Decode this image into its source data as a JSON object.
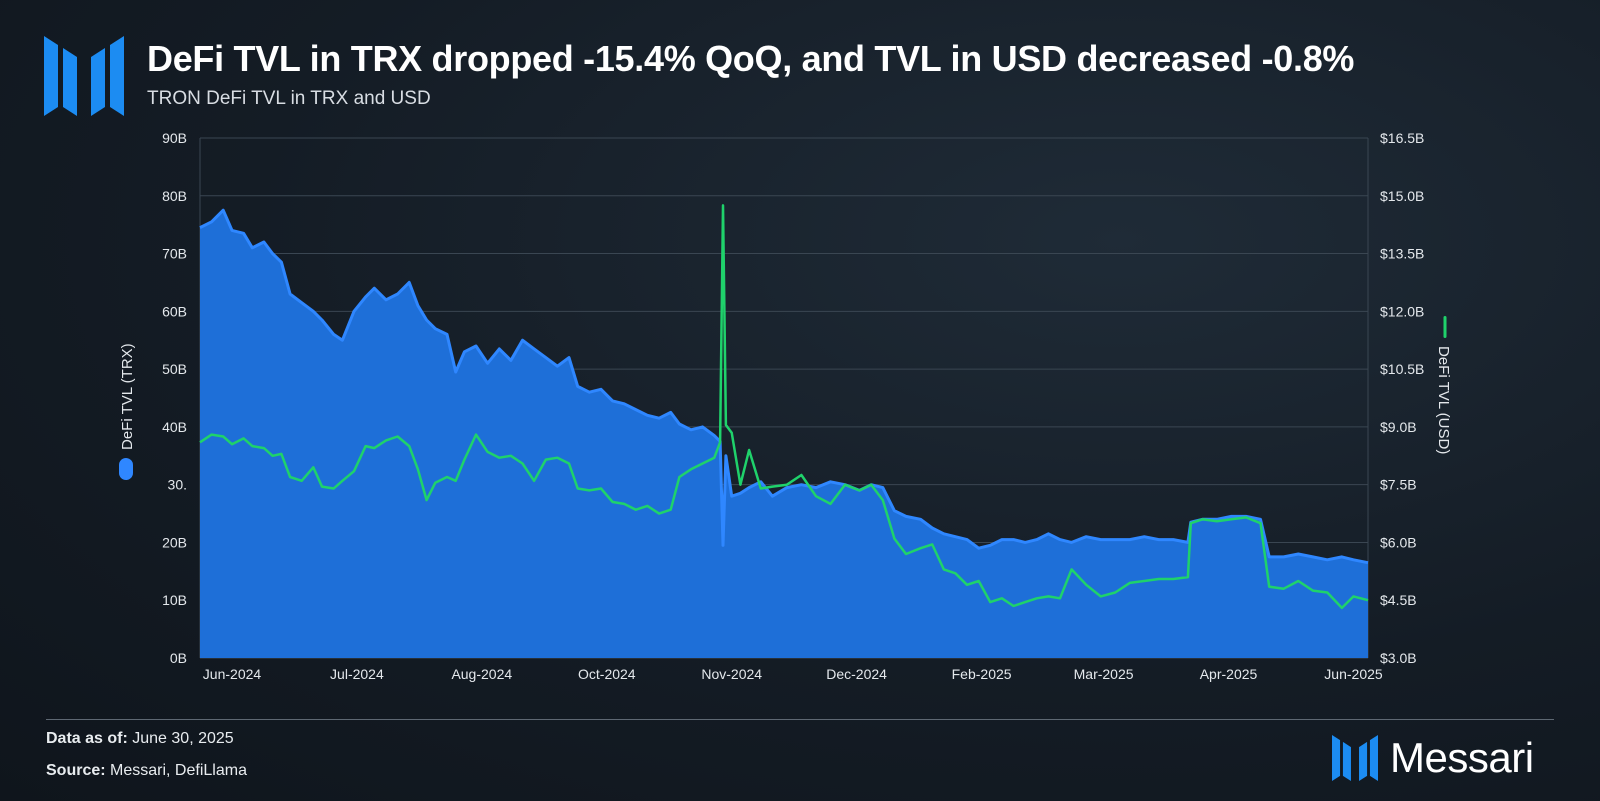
{
  "header": {
    "title": "DeFi TVL in TRX dropped -15.4% QoQ, and TVL in USD decreased -0.8%",
    "subtitle": "TRON DeFi TVL in TRX and USD"
  },
  "footer": {
    "date_label": "Data as of:",
    "date_value": "June 30, 2025",
    "source_label": "Source:",
    "source_value": "Messari, DefiLlama",
    "brand": "Messari"
  },
  "colors": {
    "trx_area": "#1e6fd8",
    "trx_line": "#2f87ff",
    "usd_line": "#1fd26b",
    "axis_text": "#e4e8ec",
    "grid": "#3a4652",
    "logo": "#1c8cf2"
  },
  "icons": {
    "logo": "messari-logo-icon"
  },
  "chart_data": {
    "type": "area",
    "ylabel_left": "DeFi TVL (TRX)",
    "ylabel_right": "DeFi TVL (USD)",
    "ylim_left": [
      0,
      90
    ],
    "ylim_right": [
      3.0,
      16.5
    ],
    "left_ticks": [
      "0B",
      "10B",
      "20B",
      "30.",
      "40B",
      "50B",
      "60B",
      "70B",
      "80B",
      "90B"
    ],
    "right_ticks": [
      "$3.0B",
      "$4.5B",
      "$6.0B",
      "$7.5B",
      "$9.0B",
      "$10.5B",
      "$12.0B",
      "$13.5B",
      "$15.0B",
      "$16.5B"
    ],
    "x_ticks": [
      "Jun-2024",
      "Jul-2024",
      "Aug-2024",
      "Oct-2024",
      "Nov-2024",
      "Dec-2024",
      "Feb-2025",
      "Mar-2025",
      "Apr-2025",
      "Jun-2025"
    ],
    "x_tick_dates": [
      "2024-06-04",
      "2024-07-17",
      "2024-08-29",
      "2024-10-11",
      "2024-11-23",
      "2025-01-05",
      "2025-02-17",
      "2025-03-31",
      "2025-05-13",
      "2025-06-25"
    ],
    "x_range": [
      "2024-05-24",
      "2025-06-30"
    ],
    "grid": true,
    "legend": "axis-titles",
    "series": [
      {
        "name": "DeFi TVL (TRX)",
        "unit": "B TRX",
        "axis": "left",
        "points": [
          [
            "2024-05-24",
            74.5
          ],
          [
            "2024-05-28",
            75.5
          ],
          [
            "2024-06-01",
            77.5
          ],
          [
            "2024-06-04",
            74
          ],
          [
            "2024-06-08",
            73.5
          ],
          [
            "2024-06-11",
            71
          ],
          [
            "2024-06-15",
            72
          ],
          [
            "2024-06-18",
            70
          ],
          [
            "2024-06-21",
            68.5
          ],
          [
            "2024-06-24",
            63
          ],
          [
            "2024-06-28",
            61.5
          ],
          [
            "2024-07-02",
            60
          ],
          [
            "2024-07-05",
            58.5
          ],
          [
            "2024-07-09",
            56
          ],
          [
            "2024-07-12",
            55
          ],
          [
            "2024-07-16",
            60
          ],
          [
            "2024-07-20",
            62.5
          ],
          [
            "2024-07-23",
            64
          ],
          [
            "2024-07-27",
            62
          ],
          [
            "2024-07-31",
            63
          ],
          [
            "2024-08-04",
            65
          ],
          [
            "2024-08-07",
            61
          ],
          [
            "2024-08-10",
            58.5
          ],
          [
            "2024-08-13",
            57
          ],
          [
            "2024-08-17",
            56
          ],
          [
            "2024-08-20",
            49.5
          ],
          [
            "2024-08-23",
            53
          ],
          [
            "2024-08-27",
            54
          ],
          [
            "2024-08-31",
            51
          ],
          [
            "2024-09-04",
            53.5
          ],
          [
            "2024-09-08",
            51.5
          ],
          [
            "2024-09-12",
            55
          ],
          [
            "2024-09-16",
            53.5
          ],
          [
            "2024-09-20",
            52
          ],
          [
            "2024-09-24",
            50.5
          ],
          [
            "2024-09-28",
            52
          ],
          [
            "2024-10-01",
            47
          ],
          [
            "2024-10-05",
            46
          ],
          [
            "2024-10-09",
            46.5
          ],
          [
            "2024-10-13",
            44.5
          ],
          [
            "2024-10-17",
            44
          ],
          [
            "2024-10-21",
            43
          ],
          [
            "2024-10-25",
            42
          ],
          [
            "2024-10-29",
            41.5
          ],
          [
            "2024-11-02",
            42.5
          ],
          [
            "2024-11-05",
            40.5
          ],
          [
            "2024-11-09",
            39.5
          ],
          [
            "2024-11-13",
            40
          ],
          [
            "2024-11-17",
            38.5
          ],
          [
            "2024-11-19",
            37.5
          ],
          [
            "2024-11-20",
            19.5
          ],
          [
            "2024-11-21",
            35
          ],
          [
            "2024-11-23",
            28
          ],
          [
            "2024-11-26",
            28.5
          ],
          [
            "2024-11-29",
            29.5
          ],
          [
            "2024-12-03",
            30.5
          ],
          [
            "2024-12-07",
            28
          ],
          [
            "2024-12-12",
            29.5
          ],
          [
            "2024-12-17",
            30
          ],
          [
            "2024-12-22",
            29.5
          ],
          [
            "2024-12-27",
            30.5
          ],
          [
            "2025-01-01",
            30
          ],
          [
            "2025-01-06",
            29
          ],
          [
            "2025-01-10",
            30
          ],
          [
            "2025-01-14",
            29.5
          ],
          [
            "2025-01-18",
            25.5
          ],
          [
            "2025-01-22",
            24.5
          ],
          [
            "2025-01-27",
            24
          ],
          [
            "2025-01-31",
            22.5
          ],
          [
            "2025-02-04",
            21.5
          ],
          [
            "2025-02-08",
            21
          ],
          [
            "2025-02-12",
            20.5
          ],
          [
            "2025-02-16",
            19
          ],
          [
            "2025-02-20",
            19.5
          ],
          [
            "2025-02-24",
            20.5
          ],
          [
            "2025-02-28",
            20.5
          ],
          [
            "2025-03-04",
            20
          ],
          [
            "2025-03-08",
            20.5
          ],
          [
            "2025-03-12",
            21.5
          ],
          [
            "2025-03-16",
            20.5
          ],
          [
            "2025-03-20",
            20
          ],
          [
            "2025-03-25",
            21
          ],
          [
            "2025-03-30",
            20.5
          ],
          [
            "2025-04-04",
            20.5
          ],
          [
            "2025-04-09",
            20.5
          ],
          [
            "2025-04-14",
            21
          ],
          [
            "2025-04-19",
            20.5
          ],
          [
            "2025-04-24",
            20.5
          ],
          [
            "2025-04-29",
            20
          ],
          [
            "2025-04-30",
            23.5
          ],
          [
            "2025-05-04",
            24
          ],
          [
            "2025-05-09",
            24
          ],
          [
            "2025-05-14",
            24.5
          ],
          [
            "2025-05-19",
            24.5
          ],
          [
            "2025-05-24",
            24
          ],
          [
            "2025-05-27",
            17.5
          ],
          [
            "2025-06-01",
            17.5
          ],
          [
            "2025-06-06",
            18
          ],
          [
            "2025-06-11",
            17.5
          ],
          [
            "2025-06-16",
            17
          ],
          [
            "2025-06-21",
            17.5
          ],
          [
            "2025-06-25",
            17
          ],
          [
            "2025-06-30",
            16.5
          ]
        ]
      },
      {
        "name": "DeFi TVL (USD)",
        "unit": "$B",
        "axis": "right",
        "points": [
          [
            "2024-05-24",
            8.6
          ],
          [
            "2024-05-28",
            8.8
          ],
          [
            "2024-06-01",
            8.75
          ],
          [
            "2024-06-04",
            8.55
          ],
          [
            "2024-06-08",
            8.7
          ],
          [
            "2024-06-11",
            8.5
          ],
          [
            "2024-06-15",
            8.45
          ],
          [
            "2024-06-18",
            8.25
          ],
          [
            "2024-06-21",
            8.3
          ],
          [
            "2024-06-24",
            7.7
          ],
          [
            "2024-06-28",
            7.6
          ],
          [
            "2024-07-02",
            7.95
          ],
          [
            "2024-07-05",
            7.45
          ],
          [
            "2024-07-09",
            7.4
          ],
          [
            "2024-07-12",
            7.6
          ],
          [
            "2024-07-16",
            7.85
          ],
          [
            "2024-07-20",
            8.5
          ],
          [
            "2024-07-23",
            8.45
          ],
          [
            "2024-07-27",
            8.65
          ],
          [
            "2024-07-31",
            8.75
          ],
          [
            "2024-08-04",
            8.5
          ],
          [
            "2024-08-07",
            7.9
          ],
          [
            "2024-08-10",
            7.1
          ],
          [
            "2024-08-13",
            7.55
          ],
          [
            "2024-08-17",
            7.7
          ],
          [
            "2024-08-20",
            7.6
          ],
          [
            "2024-08-23",
            8.15
          ],
          [
            "2024-08-27",
            8.8
          ],
          [
            "2024-08-31",
            8.35
          ],
          [
            "2024-09-04",
            8.2
          ],
          [
            "2024-09-08",
            8.25
          ],
          [
            "2024-09-12",
            8.05
          ],
          [
            "2024-09-16",
            7.6
          ],
          [
            "2024-09-20",
            8.15
          ],
          [
            "2024-09-24",
            8.2
          ],
          [
            "2024-09-28",
            8.05
          ],
          [
            "2024-10-01",
            7.4
          ],
          [
            "2024-10-05",
            7.35
          ],
          [
            "2024-10-09",
            7.4
          ],
          [
            "2024-10-13",
            7.05
          ],
          [
            "2024-10-17",
            7.0
          ],
          [
            "2024-10-21",
            6.85
          ],
          [
            "2024-10-25",
            6.95
          ],
          [
            "2024-10-29",
            6.75
          ],
          [
            "2024-11-02",
            6.85
          ],
          [
            "2024-11-05",
            7.7
          ],
          [
            "2024-11-09",
            7.9
          ],
          [
            "2024-11-13",
            8.05
          ],
          [
            "2024-11-17",
            8.2
          ],
          [
            "2024-11-19",
            8.6
          ],
          [
            "2024-11-20",
            14.75
          ],
          [
            "2024-11-21",
            9.05
          ],
          [
            "2024-11-23",
            8.85
          ],
          [
            "2024-11-26",
            7.5
          ],
          [
            "2024-11-29",
            8.4
          ],
          [
            "2024-12-03",
            7.4
          ],
          [
            "2024-12-07",
            7.45
          ],
          [
            "2024-12-12",
            7.5
          ],
          [
            "2024-12-17",
            7.75
          ],
          [
            "2024-12-22",
            7.2
          ],
          [
            "2024-12-27",
            7.0
          ],
          [
            "2025-01-01",
            7.5
          ],
          [
            "2025-01-06",
            7.35
          ],
          [
            "2025-01-10",
            7.5
          ],
          [
            "2025-01-14",
            7.1
          ],
          [
            "2025-01-18",
            6.1
          ],
          [
            "2025-01-22",
            5.7
          ],
          [
            "2025-01-27",
            5.85
          ],
          [
            "2025-01-31",
            5.95
          ],
          [
            "2025-02-04",
            5.3
          ],
          [
            "2025-02-08",
            5.2
          ],
          [
            "2025-02-12",
            4.9
          ],
          [
            "2025-02-16",
            5.0
          ],
          [
            "2025-02-20",
            4.45
          ],
          [
            "2025-02-24",
            4.55
          ],
          [
            "2025-02-28",
            4.35
          ],
          [
            "2025-03-04",
            4.45
          ],
          [
            "2025-03-08",
            4.55
          ],
          [
            "2025-03-12",
            4.6
          ],
          [
            "2025-03-16",
            4.55
          ],
          [
            "2025-03-20",
            5.3
          ],
          [
            "2025-03-25",
            4.9
          ],
          [
            "2025-03-30",
            4.6
          ],
          [
            "2025-04-04",
            4.7
          ],
          [
            "2025-04-09",
            4.95
          ],
          [
            "2025-04-14",
            5.0
          ],
          [
            "2025-04-19",
            5.05
          ],
          [
            "2025-04-24",
            5.05
          ],
          [
            "2025-04-29",
            5.1
          ],
          [
            "2025-04-30",
            6.5
          ],
          [
            "2025-05-04",
            6.6
          ],
          [
            "2025-05-09",
            6.55
          ],
          [
            "2025-05-14",
            6.6
          ],
          [
            "2025-05-19",
            6.65
          ],
          [
            "2025-05-24",
            6.5
          ],
          [
            "2025-05-27",
            4.85
          ],
          [
            "2025-06-01",
            4.8
          ],
          [
            "2025-06-06",
            5.0
          ],
          [
            "2025-06-11",
            4.75
          ],
          [
            "2025-06-16",
            4.7
          ],
          [
            "2025-06-21",
            4.3
          ],
          [
            "2025-06-25",
            4.6
          ],
          [
            "2025-06-30",
            4.5
          ]
        ]
      }
    ]
  }
}
